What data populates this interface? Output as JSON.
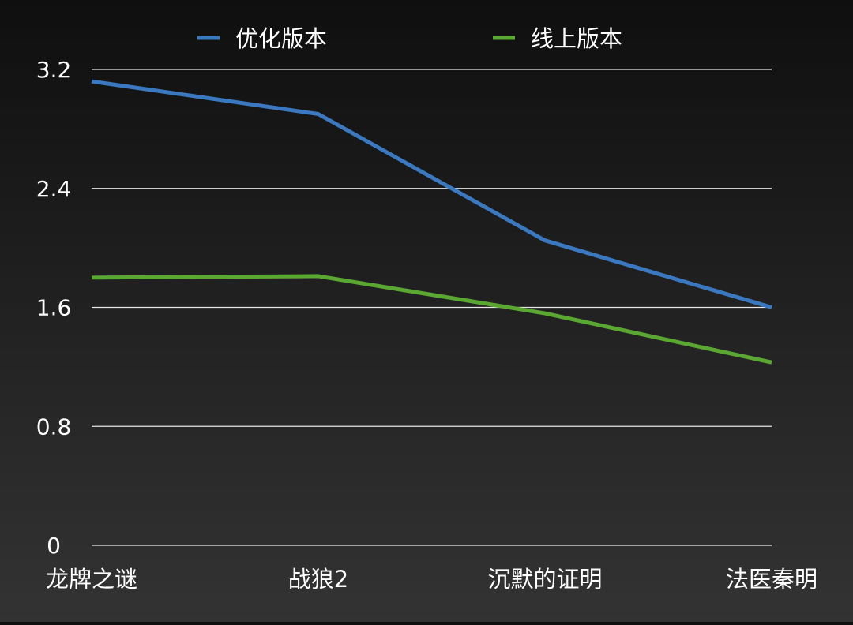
{
  "chart_data": {
    "type": "line",
    "title": "",
    "xlabel": "",
    "ylabel": "",
    "categories": [
      "龙牌之谜",
      "战狼2",
      "沉默的证明",
      "法医秦明"
    ],
    "series": [
      {
        "name": "优化版本",
        "color": "#3a78c0",
        "values": [
          3.12,
          2.9,
          2.05,
          1.6
        ]
      },
      {
        "name": "线上版本",
        "color": "#5aa832",
        "values": [
          1.8,
          1.81,
          1.56,
          1.23
        ]
      }
    ],
    "yticks": [
      "0",
      "0.8",
      "1.6",
      "2.4",
      "3.2"
    ],
    "ylim": [
      0,
      3.2
    ],
    "grid": true,
    "legend_position": "top"
  }
}
